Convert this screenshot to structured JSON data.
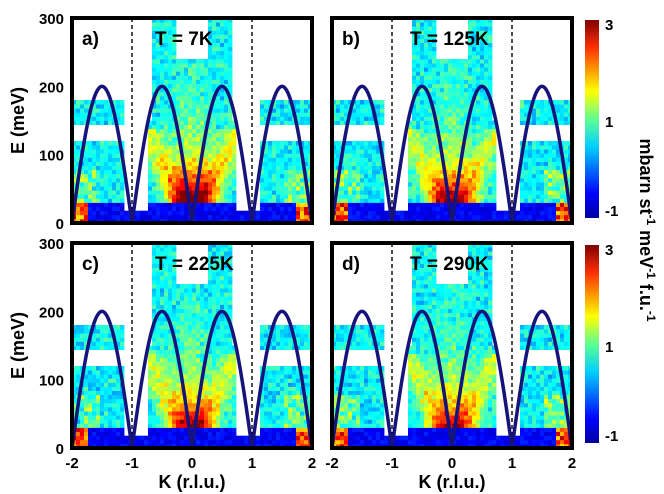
{
  "chart_data": {
    "type": "heatmap",
    "colormap": "jet",
    "xlabel": "K (r.l.u.)",
    "ylabel": "E (meV)",
    "xlim": [
      -2,
      2
    ],
    "ylim": [
      0,
      300
    ],
    "x_ticks": [
      "-2",
      "-1",
      "0",
      "1",
      "2"
    ],
    "y_ticks": [
      "0",
      "100",
      "200",
      "300"
    ],
    "colorbar": {
      "label_parts": [
        "mbarn st",
        "-1",
        " meV",
        "-1",
        " f.u.",
        "-1"
      ],
      "label": "mbarn st-1 meV-1 f.u.-1",
      "ticks": [
        "3",
        "1",
        "-1"
      ],
      "range": [
        -1,
        3
      ]
    },
    "dispersion": {
      "shape": "|sin(pi*K)|",
      "max_energy_meV": 200,
      "color": "#16137a"
    },
    "zone_boundaries_K": [
      -1,
      1
    ],
    "panels": [
      {
        "tag": "a)",
        "temperature": "T = 7K",
        "intensity": 1.0
      },
      {
        "tag": "b)",
        "temperature": "T = 125K",
        "intensity": 0.85
      },
      {
        "tag": "c)",
        "temperature": "T = 225K",
        "intensity": 0.8
      },
      {
        "tag": "d)",
        "temperature": "T = 290K",
        "intensity": 0.78
      }
    ]
  }
}
